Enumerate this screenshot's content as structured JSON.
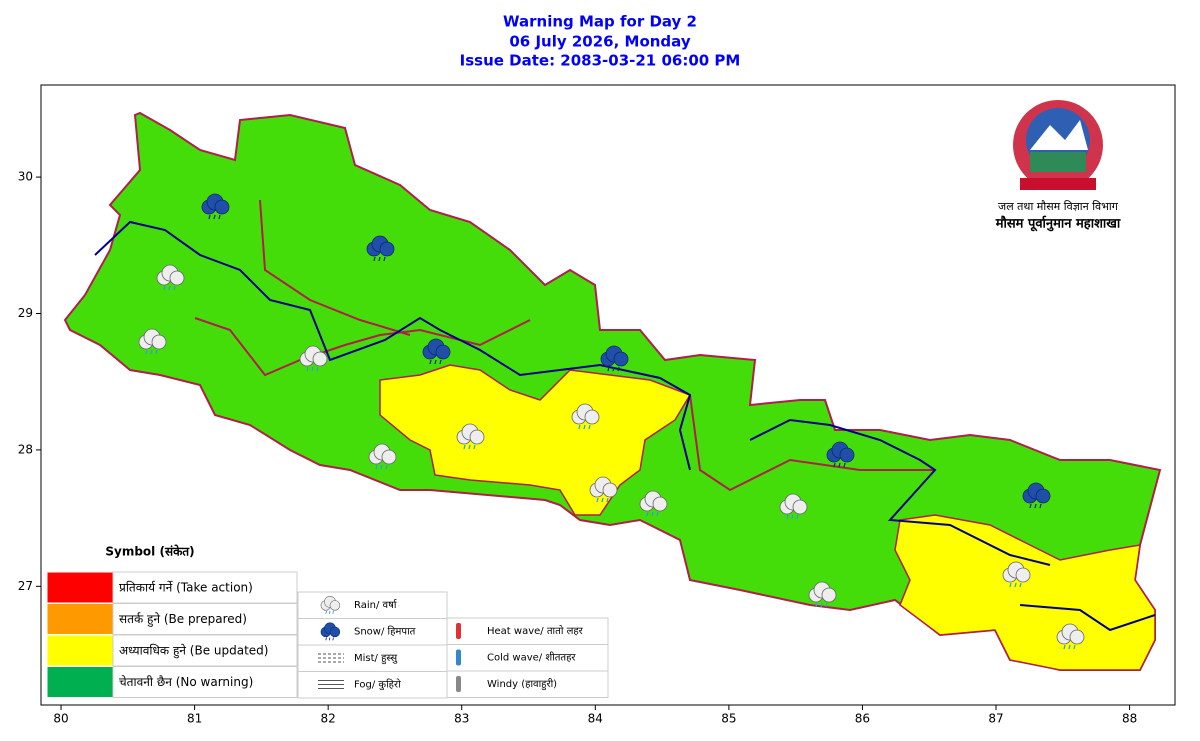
{
  "header": {
    "title": [
      "Warning Map for Day 2",
      "06 July 2026, Monday",
      "Issue Date: 2083-03-21 06:00 PM"
    ],
    "color": "#0000ff"
  },
  "map": {
    "xlim": [
      79.85,
      88.34
    ],
    "ylim": [
      26.13,
      30.675
    ],
    "xticks": [
      80,
      81,
      82,
      83,
      84,
      85,
      86,
      87,
      88
    ],
    "yticks": [
      27,
      28,
      29,
      30
    ]
  },
  "logo": {
    "line1": "जल तथा मौसम विज्ञान विभाग",
    "line2": "मौसम पूर्वानुमान महाशाखा"
  },
  "legend": {
    "title": "Symbol (संकेत)",
    "levels": [
      {
        "label": "प्रतिकार्य गर्ने (Take action)",
        "color": "#ff0000"
      },
      {
        "label": "सतर्क हुने (Be prepared)",
        "color": "#ff9900"
      },
      {
        "label": "अध्यावधिक हुने (Be updated)",
        "color": "#ffff00"
      },
      {
        "label": "चेतावनी छैन (No warning)",
        "color": "#00b050"
      }
    ],
    "symbols": [
      "Rain/ वर्षा",
      "Snow/ हिमपात",
      "Mist/ हुस्सु",
      "Fog/ कुहिरो"
    ],
    "symbols2": [
      "Heat wave/ तातो लहर",
      "Cold wave/ शीततहर",
      "Windy (हावाहुरी)"
    ]
  }
}
